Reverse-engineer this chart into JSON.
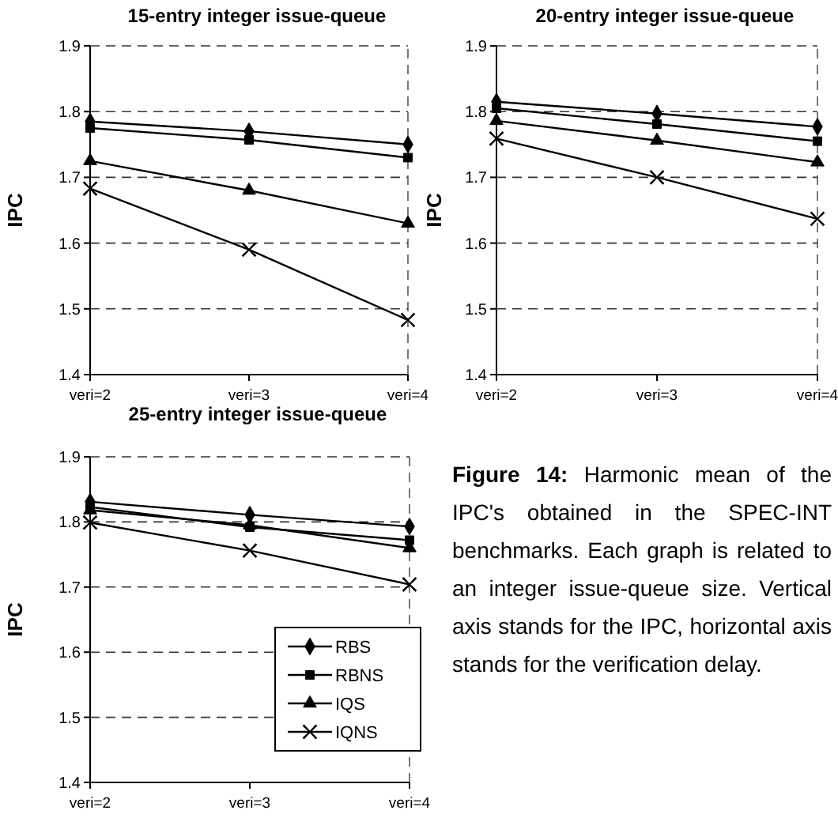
{
  "chart_data": [
    {
      "type": "line",
      "title": "15-entry integer issue-queue",
      "ylabel": "IPC",
      "categories": [
        "veri=2",
        "veri=3",
        "veri=4"
      ],
      "ylim": [
        1.4,
        1.9
      ],
      "yticks": [
        1.4,
        1.5,
        1.6,
        1.7,
        1.8,
        1.9
      ],
      "grid": "y",
      "legend": false,
      "series": [
        {
          "color": "#000000",
          "marker": "diamond",
          "values": [
            1.785,
            1.77,
            1.75
          ]
        },
        {
          "color": "#000000",
          "marker": "square",
          "values": [
            1.775,
            1.757,
            1.73
          ]
        },
        {
          "color": "#000000",
          "marker": "triangle",
          "values": [
            1.725,
            1.68,
            1.63
          ]
        },
        {
          "color": "#000000",
          "marker": "cross",
          "values": [
            1.683,
            1.59,
            1.483
          ]
        }
      ]
    },
    {
      "type": "line",
      "title": "20-entry integer issue-queue",
      "ylabel": "IPC",
      "categories": [
        "veri=2",
        "veri=3",
        "veri=4"
      ],
      "ylim": [
        1.4,
        1.9
      ],
      "yticks": [
        1.4,
        1.5,
        1.6,
        1.7,
        1.8,
        1.9
      ],
      "grid": "y",
      "legend": false,
      "series": [
        {
          "color": "#000000",
          "marker": "diamond",
          "values": [
            1.815,
            1.797,
            1.777
          ]
        },
        {
          "color": "#000000",
          "marker": "square",
          "values": [
            1.805,
            1.781,
            1.755
          ]
        },
        {
          "color": "#000000",
          "marker": "triangle",
          "values": [
            1.786,
            1.756,
            1.723
          ]
        },
        {
          "color": "#000000",
          "marker": "cross",
          "values": [
            1.759,
            1.7,
            1.637
          ]
        }
      ]
    },
    {
      "type": "line",
      "title": "25-entry integer issue-queue",
      "ylabel": "IPC",
      "categories": [
        "veri=2",
        "veri=3",
        "veri=4"
      ],
      "ylim": [
        1.4,
        1.9
      ],
      "yticks": [
        1.4,
        1.5,
        1.6,
        1.7,
        1.8,
        1.9
      ],
      "grid": "y",
      "legend": "bottom right",
      "series": [
        {
          "name": "RBS",
          "color": "#000000",
          "marker": "diamond",
          "values": [
            1.831,
            1.811,
            1.793
          ]
        },
        {
          "name": "RBNS",
          "color": "#000000",
          "marker": "square",
          "values": [
            1.823,
            1.792,
            1.772
          ]
        },
        {
          "name": "IQS",
          "color": "#000000",
          "marker": "triangle",
          "values": [
            1.818,
            1.795,
            1.76
          ]
        },
        {
          "name": "IQNS",
          "color": "#000000",
          "marker": "cross",
          "values": [
            1.799,
            1.756,
            1.704
          ]
        }
      ]
    },
    {
      "type": "other",
      "title": "Figure 14:",
      "annotations": [
        "Harmonic mean of the IPC's obtained in the SPEC-INT benchmarks. Each graph is related to an integer issue-queue size. Vertical axis stands for the IPC, horizontal axis stands for the verification delay."
      ]
    }
  ]
}
